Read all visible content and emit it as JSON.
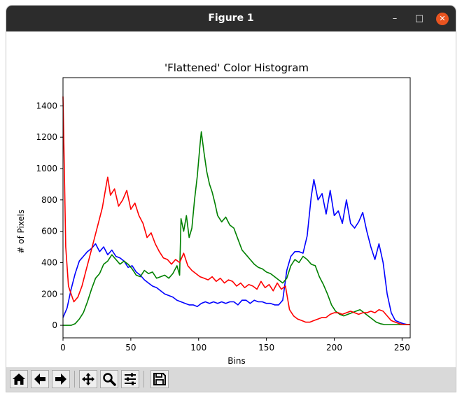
{
  "window": {
    "title": "Figure 1",
    "buttons": {
      "minimize": "–",
      "maximize": "□",
      "close": "✕"
    }
  },
  "toolbar": {
    "icons": [
      "home-icon",
      "back-icon",
      "forward-icon",
      "pan-icon",
      "zoom-icon",
      "configure-subplots-icon",
      "save-icon"
    ]
  },
  "chart_data": {
    "type": "line",
    "title": "'Flattened' Color Histogram",
    "xlabel": "Bins",
    "ylabel": "# of Pixels",
    "xlim": [
      0,
      256
    ],
    "ylim": [
      -80,
      1580
    ],
    "xticks": [
      0,
      50,
      100,
      150,
      200,
      250
    ],
    "yticks": [
      0,
      200,
      400,
      600,
      800,
      1000,
      1200,
      1400
    ],
    "grid": false,
    "series": [
      {
        "color": "#0000ff",
        "x": [
          0,
          3,
          6,
          9,
          12,
          15,
          18,
          21,
          24,
          27,
          30,
          33,
          36,
          39,
          42,
          45,
          48,
          51,
          54,
          57,
          60,
          63,
          66,
          69,
          72,
          75,
          78,
          81,
          84,
          87,
          90,
          93,
          96,
          99,
          102,
          105,
          108,
          111,
          114,
          117,
          120,
          123,
          126,
          129,
          132,
          135,
          138,
          141,
          144,
          147,
          150,
          153,
          156,
          159,
          162,
          165,
          168,
          171,
          174,
          177,
          180,
          183,
          185,
          188,
          191,
          194,
          197,
          200,
          203,
          206,
          209,
          212,
          215,
          218,
          221,
          224,
          227,
          230,
          233,
          236,
          239,
          242,
          245,
          248,
          251,
          254,
          256
        ],
        "y": [
          50,
          110,
          230,
          330,
          410,
          440,
          470,
          490,
          520,
          470,
          500,
          450,
          480,
          440,
          430,
          410,
          370,
          380,
          340,
          320,
          290,
          270,
          250,
          240,
          220,
          200,
          190,
          180,
          160,
          150,
          140,
          130,
          130,
          120,
          140,
          150,
          140,
          150,
          140,
          150,
          140,
          150,
          150,
          130,
          160,
          160,
          140,
          160,
          150,
          150,
          140,
          140,
          130,
          130,
          160,
          350,
          440,
          470,
          470,
          460,
          570,
          820,
          930,
          800,
          840,
          710,
          860,
          700,
          730,
          650,
          800,
          650,
          620,
          660,
          720,
          600,
          500,
          420,
          520,
          400,
          200,
          80,
          30,
          20,
          10,
          5,
          5
        ]
      },
      {
        "color": "#008000",
        "x": [
          0,
          3,
          6,
          9,
          12,
          15,
          18,
          21,
          24,
          27,
          30,
          33,
          36,
          39,
          42,
          45,
          48,
          51,
          54,
          57,
          60,
          63,
          66,
          69,
          72,
          75,
          78,
          81,
          84,
          86,
          87,
          89,
          91,
          93,
          95,
          97,
          99,
          101,
          102,
          104,
          106,
          108,
          110,
          112,
          114,
          117,
          120,
          123,
          126,
          129,
          132,
          135,
          138,
          141,
          144,
          147,
          150,
          153,
          156,
          159,
          162,
          165,
          168,
          171,
          174,
          177,
          180,
          183,
          186,
          189,
          192,
          195,
          198,
          201,
          204,
          207,
          210,
          213,
          216,
          219,
          222,
          225,
          228,
          231,
          234,
          237,
          240,
          243,
          246,
          249,
          252,
          256
        ],
        "y": [
          0,
          0,
          0,
          10,
          40,
          80,
          150,
          230,
          300,
          330,
          390,
          410,
          450,
          420,
          390,
          410,
          390,
          360,
          320,
          310,
          350,
          330,
          340,
          300,
          310,
          320,
          300,
          330,
          380,
          320,
          680,
          600,
          700,
          560,
          620,
          800,
          950,
          1150,
          1235,
          1100,
          980,
          900,
          850,
          780,
          700,
          660,
          690,
          640,
          620,
          550,
          480,
          450,
          420,
          390,
          370,
          360,
          340,
          330,
          310,
          290,
          270,
          300,
          380,
          420,
          400,
          440,
          420,
          390,
          380,
          310,
          260,
          200,
          130,
          90,
          70,
          60,
          70,
          80,
          90,
          100,
          80,
          60,
          40,
          20,
          10,
          5,
          5,
          5,
          5,
          5,
          5,
          5
        ]
      },
      {
        "color": "#ff0000",
        "x": [
          0,
          1,
          2,
          4,
          6,
          8,
          11,
          14,
          17,
          20,
          23,
          26,
          29,
          32,
          33,
          35,
          38,
          41,
          44,
          47,
          50,
          53,
          56,
          59,
          62,
          65,
          68,
          71,
          74,
          77,
          80,
          83,
          86,
          89,
          92,
          95,
          98,
          101,
          104,
          107,
          110,
          113,
          116,
          119,
          122,
          125,
          128,
          131,
          134,
          137,
          140,
          143,
          146,
          149,
          152,
          155,
          158,
          161,
          164,
          165,
          167,
          170,
          173,
          176,
          179,
          182,
          185,
          188,
          191,
          194,
          197,
          200,
          203,
          206,
          209,
          212,
          215,
          218,
          221,
          224,
          227,
          230,
          233,
          236,
          239,
          242,
          245,
          248,
          251,
          254,
          256
        ],
        "y": [
          1460,
          1000,
          500,
          250,
          200,
          150,
          180,
          250,
          350,
          450,
          550,
          650,
          750,
          900,
          945,
          830,
          870,
          760,
          800,
          860,
          740,
          780,
          700,
          650,
          560,
          590,
          520,
          470,
          430,
          420,
          390,
          420,
          400,
          460,
          380,
          350,
          330,
          310,
          300,
          290,
          310,
          280,
          300,
          270,
          290,
          280,
          250,
          270,
          240,
          260,
          250,
          230,
          280,
          240,
          260,
          220,
          270,
          230,
          250,
          200,
          100,
          60,
          40,
          30,
          20,
          20,
          30,
          40,
          50,
          50,
          70,
          80,
          80,
          70,
          80,
          90,
          80,
          70,
          80,
          80,
          90,
          80,
          100,
          90,
          60,
          30,
          20,
          10,
          5,
          5,
          5
        ]
      }
    ]
  }
}
